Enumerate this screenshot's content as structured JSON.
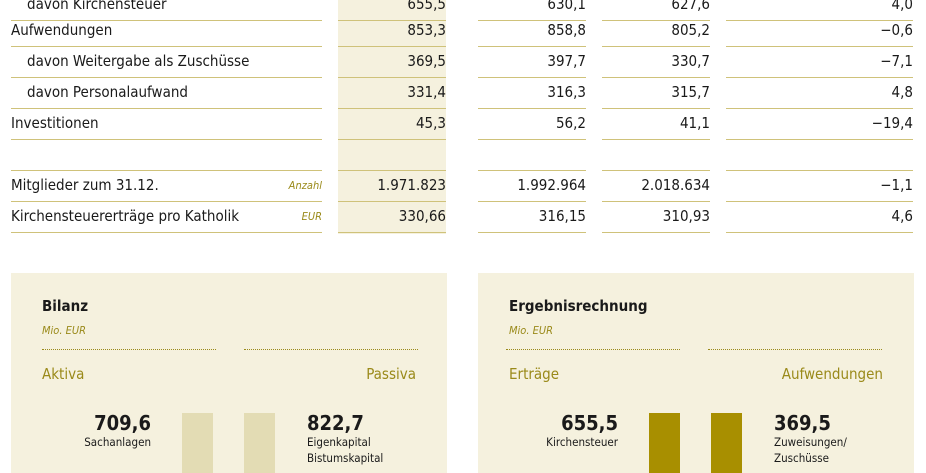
{
  "rows": [
    {
      "label": "davon Kirchensteuer",
      "unit": "",
      "v1": "655,5",
      "v2": "630,1",
      "v3": "627,6",
      "v4": "4,0",
      "indent": true
    },
    {
      "label": "Aufwendungen",
      "unit": "",
      "v1": "853,3",
      "v2": "858,8",
      "v3": "805,2",
      "v4": "−0,6",
      "indent": false
    },
    {
      "label": "davon Weitergabe als Zuschüsse",
      "unit": "",
      "v1": "369,5",
      "v2": "397,7",
      "v3": "330,7",
      "v4": "−7,1",
      "indent": true
    },
    {
      "label": "davon Personalaufwand",
      "unit": "",
      "v1": "331,4",
      "v2": "316,3",
      "v3": "315,7",
      "v4": "4,8",
      "indent": true
    },
    {
      "label": "Investitionen",
      "unit": "",
      "v1": "45,3",
      "v2": "56,2",
      "v3": "41,1",
      "v4": "−19,4",
      "indent": false
    },
    {
      "label": "",
      "unit": "",
      "v1": "",
      "v2": "",
      "v3": "",
      "v4": "",
      "indent": false
    },
    {
      "label": "Mitglieder zum 31.12.",
      "unit": "Anzahl",
      "v1": "1.971.823",
      "v2": "1.992.964",
      "v3": "2.018.634",
      "v4": "−1,1",
      "indent": false
    },
    {
      "label": "Kirchensteuererträge pro Katholik",
      "unit": "EUR",
      "v1": "330,66",
      "v2": "316,15",
      "v3": "310,93",
      "v4": "4,6",
      "indent": false
    }
  ],
  "bilanz": {
    "title": "Bilanz",
    "unit": "Mio. EUR",
    "left_label": "Aktiva",
    "right_label": "Passiva",
    "left_value": "709,6",
    "left_caption": "Sachanlagen",
    "right_value": "822,7",
    "right_caption_1": "Eigenkapital",
    "right_caption_2": "Bistumskapital",
    "bar_color": "#e3dcb4"
  },
  "ergebnis": {
    "title": "Ergebnisrechnung",
    "unit": "Mio. EUR",
    "left_label": "Erträge",
    "right_label": "Aufwendungen",
    "left_value": "655,5",
    "left_caption": "Kirchensteuer",
    "right_value": "369,5",
    "right_caption_1": "Zuweisungen/",
    "right_caption_2": "Zuschüsse",
    "bar_color": "#a88f00"
  },
  "colors": {
    "accent": "#9a8a1a",
    "highlight": "#f5f1de",
    "rule": "#cfc27a"
  }
}
